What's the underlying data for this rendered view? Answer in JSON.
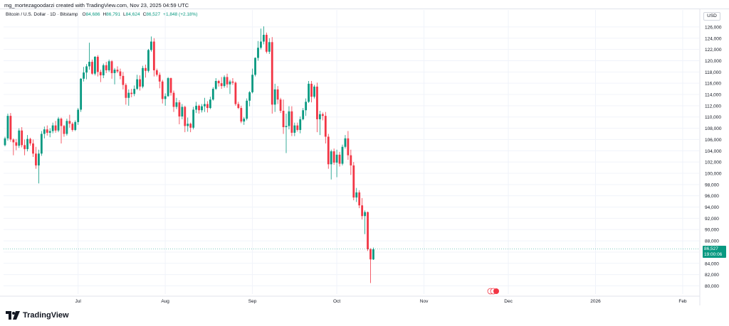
{
  "attribution": "mg_mortezagoodarzi created with TradingView.com, Nov 23, 2025 04:59 UTC",
  "legend": {
    "symbol": "Bitcoin / U.S. Dollar · 1D · Bitstamp",
    "open_label": "O",
    "open": "84,686",
    "high_label": "H",
    "high": "86,791",
    "low_label": "L",
    "low": "84,624",
    "close_label": "C",
    "close": "86,527",
    "change": "+1,848 (+2.18%)"
  },
  "currency": "USD",
  "last_price": {
    "value": "86,527",
    "countdown": "19:00:06"
  },
  "brand": "TradingView",
  "colors": {
    "up": "#089981",
    "down": "#f23645",
    "grid": "#f0f3fa",
    "axis_text": "#131722"
  },
  "chart_data": {
    "type": "candlestick",
    "title": "Bitcoin / U.S. Dollar · 1D · Bitstamp",
    "xlabel": "",
    "ylabel": "USD",
    "ylim": [
      78800,
      127000
    ],
    "y_ticks": [
      "80,000",
      "82,000",
      "84,000",
      "86,000",
      "88,000",
      "90,000",
      "92,000",
      "94,000",
      "96,000",
      "98,000",
      "100,000",
      "102,000",
      "104,000",
      "106,000",
      "108,000",
      "110,000",
      "112,000",
      "114,000",
      "116,000",
      "118,000",
      "120,000",
      "122,000",
      "124,000",
      "126,000"
    ],
    "x_ticks": [
      {
        "label": "Jul",
        "day": 26
      },
      {
        "label": "Aug",
        "day": 57
      },
      {
        "label": "Sep",
        "day": 88
      },
      {
        "label": "Oct",
        "day": 118
      },
      {
        "label": "Nov",
        "day": 149
      },
      {
        "label": "Dec",
        "day": 179
      },
      {
        "label": "2026",
        "day": 210
      },
      {
        "label": "Feb",
        "day": 241
      }
    ],
    "candles": [
      [
        105000,
        106500,
        104800,
        106200
      ],
      [
        106200,
        110600,
        105800,
        110200
      ],
      [
        110200,
        110700,
        105600,
        106000
      ],
      [
        106000,
        106200,
        103200,
        105500
      ],
      [
        105500,
        106100,
        104100,
        104900
      ],
      [
        104900,
        108000,
        104500,
        107600
      ],
      [
        107600,
        108200,
        104600,
        105000
      ],
      [
        105000,
        106000,
        103200,
        104300
      ],
      [
        104300,
        106800,
        103900,
        106100
      ],
      [
        106100,
        106300,
        104900,
        105300
      ],
      [
        105300,
        106000,
        102900,
        103500
      ],
      [
        103500,
        104700,
        100800,
        101400
      ],
      [
        101400,
        104200,
        98200,
        103500
      ],
      [
        103500,
        107500,
        103100,
        107000
      ],
      [
        107000,
        108300,
        106200,
        107800
      ],
      [
        107800,
        108500,
        106700,
        107200
      ],
      [
        107200,
        108000,
        106400,
        107500
      ],
      [
        107500,
        109000,
        107100,
        108500
      ],
      [
        108500,
        109300,
        107200,
        107600
      ],
      [
        107600,
        110000,
        107300,
        109700
      ],
      [
        109700,
        109900,
        105300,
        108400
      ],
      [
        108400,
        108600,
        106500,
        107000
      ],
      [
        107000,
        109700,
        106700,
        109300
      ],
      [
        109300,
        110400,
        108100,
        108800
      ],
      [
        108800,
        109100,
        107400,
        107700
      ],
      [
        107700,
        109400,
        107500,
        109100
      ],
      [
        109100,
        111600,
        108600,
        111300
      ],
      [
        111300,
        116900,
        110900,
        116800
      ],
      [
        116800,
        118900,
        116300,
        117900
      ],
      [
        117900,
        119400,
        116700,
        119000
      ],
      [
        119000,
        123200,
        118400,
        119800
      ],
      [
        119800,
        120200,
        117500,
        117700
      ],
      [
        117700,
        120800,
        117400,
        120700
      ],
      [
        120700,
        121000,
        117200,
        118000
      ],
      [
        118000,
        118400,
        116200,
        117400
      ],
      [
        117400,
        119500,
        116900,
        119200
      ],
      [
        119200,
        119800,
        117800,
        118300
      ],
      [
        118300,
        120200,
        118000,
        119900
      ],
      [
        119900,
        120100,
        116800,
        117800
      ],
      [
        117800,
        118700,
        115800,
        118400
      ],
      [
        118400,
        119000,
        117800,
        118100
      ],
      [
        118100,
        118600,
        116700,
        117300
      ],
      [
        117300,
        118000,
        114900,
        115700
      ],
      [
        115700,
        116000,
        112200,
        113400
      ],
      [
        113400,
        114900,
        112000,
        114300
      ],
      [
        114300,
        115000,
        113500,
        114100
      ],
      [
        114100,
        115600,
        113700,
        115000
      ],
      [
        115000,
        117500,
        114800,
        116700
      ],
      [
        116700,
        117400,
        114700,
        115400
      ],
      [
        115400,
        119100,
        115100,
        118700
      ],
      [
        118700,
        119300,
        117000,
        118200
      ],
      [
        118200,
        122100,
        117900,
        121900
      ],
      [
        121900,
        124300,
        121600,
        123400
      ],
      [
        123400,
        124000,
        117200,
        118300
      ],
      [
        118300,
        118600,
        117200,
        117500
      ],
      [
        117500,
        117900,
        115100,
        116300
      ],
      [
        116300,
        116600,
        112400,
        113200
      ],
      [
        113200,
        114200,
        112000,
        113700
      ],
      [
        113700,
        117100,
        113600,
        116900
      ],
      [
        116900,
        117000,
        113800,
        114300
      ],
      [
        114300,
        114700,
        110900,
        111800
      ],
      [
        111800,
        113400,
        111400,
        112600
      ],
      [
        112600,
        113000,
        108700,
        110100
      ],
      [
        110100,
        112300,
        109600,
        111800
      ],
      [
        111800,
        112000,
        107300,
        108400
      ],
      [
        108400,
        109900,
        107400,
        108800
      ],
      [
        108800,
        109000,
        107300,
        108100
      ],
      [
        108100,
        111800,
        107800,
        111300
      ],
      [
        111300,
        112700,
        110700,
        112000
      ],
      [
        112000,
        112200,
        110600,
        111200
      ],
      [
        111200,
        112300,
        110800,
        111900
      ],
      [
        111900,
        113400,
        110900,
        112300
      ],
      [
        112300,
        112800,
        110800,
        111600
      ],
      [
        111600,
        113600,
        111400,
        113100
      ],
      [
        113100,
        115300,
        112900,
        115000
      ],
      [
        115000,
        116900,
        114800,
        116400
      ],
      [
        116400,
        116600,
        115400,
        116000
      ],
      [
        116000,
        117100,
        115000,
        115500
      ],
      [
        115500,
        117400,
        115200,
        117100
      ],
      [
        117100,
        117700,
        115200,
        115800
      ],
      [
        115800,
        116600,
        114100,
        116300
      ],
      [
        116300,
        116900,
        115700,
        116100
      ],
      [
        116100,
        116300,
        112000,
        112300
      ],
      [
        112300,
        112700,
        111400,
        111600
      ],
      [
        111600,
        112000,
        108900,
        109200
      ],
      [
        109200,
        110000,
        108600,
        109700
      ],
      [
        109700,
        113300,
        109400,
        112900
      ],
      [
        112900,
        114600,
        111900,
        114400
      ],
      [
        114400,
        118600,
        114200,
        117500
      ],
      [
        117500,
        120600,
        117200,
        120500
      ],
      [
        120500,
        123500,
        120000,
        122300
      ],
      [
        122300,
        125700,
        122000,
        123400
      ],
      [
        123400,
        126100,
        122900,
        124600
      ],
      [
        124600,
        125000,
        121300,
        121600
      ],
      [
        121600,
        124000,
        121200,
        123300
      ],
      [
        123300,
        124200,
        110600,
        112200
      ],
      [
        112200,
        115900,
        110900,
        114900
      ],
      [
        114900,
        115500,
        112300,
        113100
      ],
      [
        113100,
        113400,
        110700,
        111100
      ],
      [
        111100,
        113100,
        107000,
        108200
      ],
      [
        108200,
        110600,
        103600,
        108400
      ],
      [
        108400,
        111900,
        107800,
        111000
      ],
      [
        111000,
        111900,
        106600,
        107200
      ],
      [
        107200,
        109000,
        106600,
        108500
      ],
      [
        108500,
        109000,
        107400,
        107700
      ],
      [
        107700,
        110100,
        107100,
        109600
      ],
      [
        109600,
        111600,
        109400,
        111200
      ],
      [
        111200,
        113300,
        110200,
        112700
      ],
      [
        112700,
        116400,
        112500,
        115900
      ],
      [
        115900,
        116400,
        112600,
        113600
      ],
      [
        113600,
        115700,
        113300,
        115400
      ],
      [
        115400,
        116100,
        107300,
        109600
      ],
      [
        109600,
        111100,
        106800,
        110500
      ],
      [
        110500,
        110800,
        109400,
        110200
      ],
      [
        110200,
        110900,
        105300,
        106500
      ],
      [
        106500,
        107000,
        100800,
        101600
      ],
      [
        101600,
        104200,
        98900,
        103900
      ],
      [
        103900,
        104400,
        101500,
        101900
      ],
      [
        101900,
        104200,
        99300,
        103300
      ],
      [
        103300,
        103800,
        101200,
        101700
      ],
      [
        101700,
        105100,
        101400,
        104700
      ],
      [
        104700,
        106800,
        104400,
        106200
      ],
      [
        106200,
        107500,
        102400,
        103200
      ],
      [
        103200,
        104200,
        99700,
        101400
      ],
      [
        101400,
        102000,
        95200,
        95700
      ],
      [
        95700,
        97400,
        94900,
        96600
      ],
      [
        96600,
        97000,
        93800,
        94300
      ],
      [
        94300,
        95600,
        91800,
        92400
      ],
      [
        92400,
        93400,
        89200,
        93100
      ],
      [
        93100,
        93200,
        86200,
        86500
      ],
      [
        86500,
        86700,
        80500,
        84700
      ],
      [
        84700,
        86800,
        84600,
        86500
      ]
    ],
    "last_price": 86527,
    "badges": [
      "earnings-marker"
    ]
  }
}
